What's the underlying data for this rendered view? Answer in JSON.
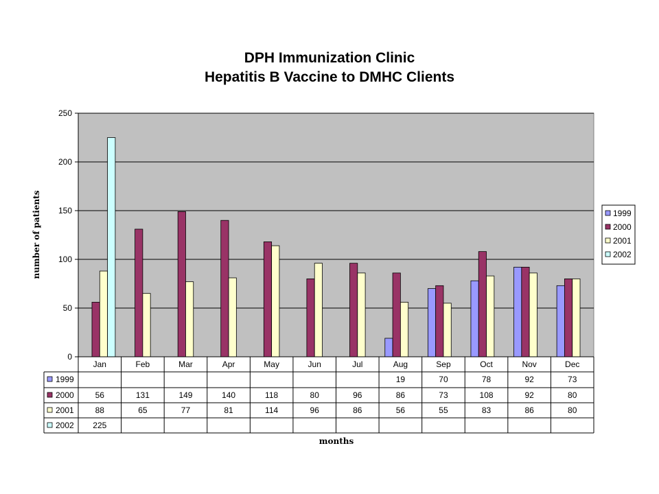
{
  "chart_data": {
    "type": "bar",
    "title": "DPH Immunization Clinic",
    "subtitle": "Hepatitis B Vaccine to DMHC Clients",
    "xlabel": "months",
    "ylabel": "number of patients",
    "ylim": [
      0,
      250
    ],
    "yticks": [
      0,
      50,
      100,
      150,
      200,
      250
    ],
    "grid": true,
    "legend_position": "right",
    "categories": [
      "Jan",
      "Feb",
      "Mar",
      "Apr",
      "May",
      "Jun",
      "Jul",
      "Aug",
      "Sep",
      "Oct",
      "Nov",
      "Dec"
    ],
    "series": [
      {
        "name": "1999",
        "color": "#9999ff",
        "values": [
          null,
          null,
          null,
          null,
          null,
          null,
          null,
          19,
          70,
          78,
          92,
          73
        ]
      },
      {
        "name": "2000",
        "color": "#993366",
        "values": [
          56,
          131,
          149,
          140,
          118,
          80,
          96,
          86,
          73,
          108,
          92,
          80
        ]
      },
      {
        "name": "2001",
        "color": "#ffffcc",
        "values": [
          88,
          65,
          77,
          81,
          114,
          96,
          86,
          56,
          55,
          83,
          86,
          80
        ]
      },
      {
        "name": "2002",
        "color": "#ccffff",
        "values": [
          225,
          null,
          null,
          null,
          null,
          null,
          null,
          null,
          null,
          null,
          null,
          null
        ]
      }
    ],
    "plot_background": "#c0c0c0"
  }
}
